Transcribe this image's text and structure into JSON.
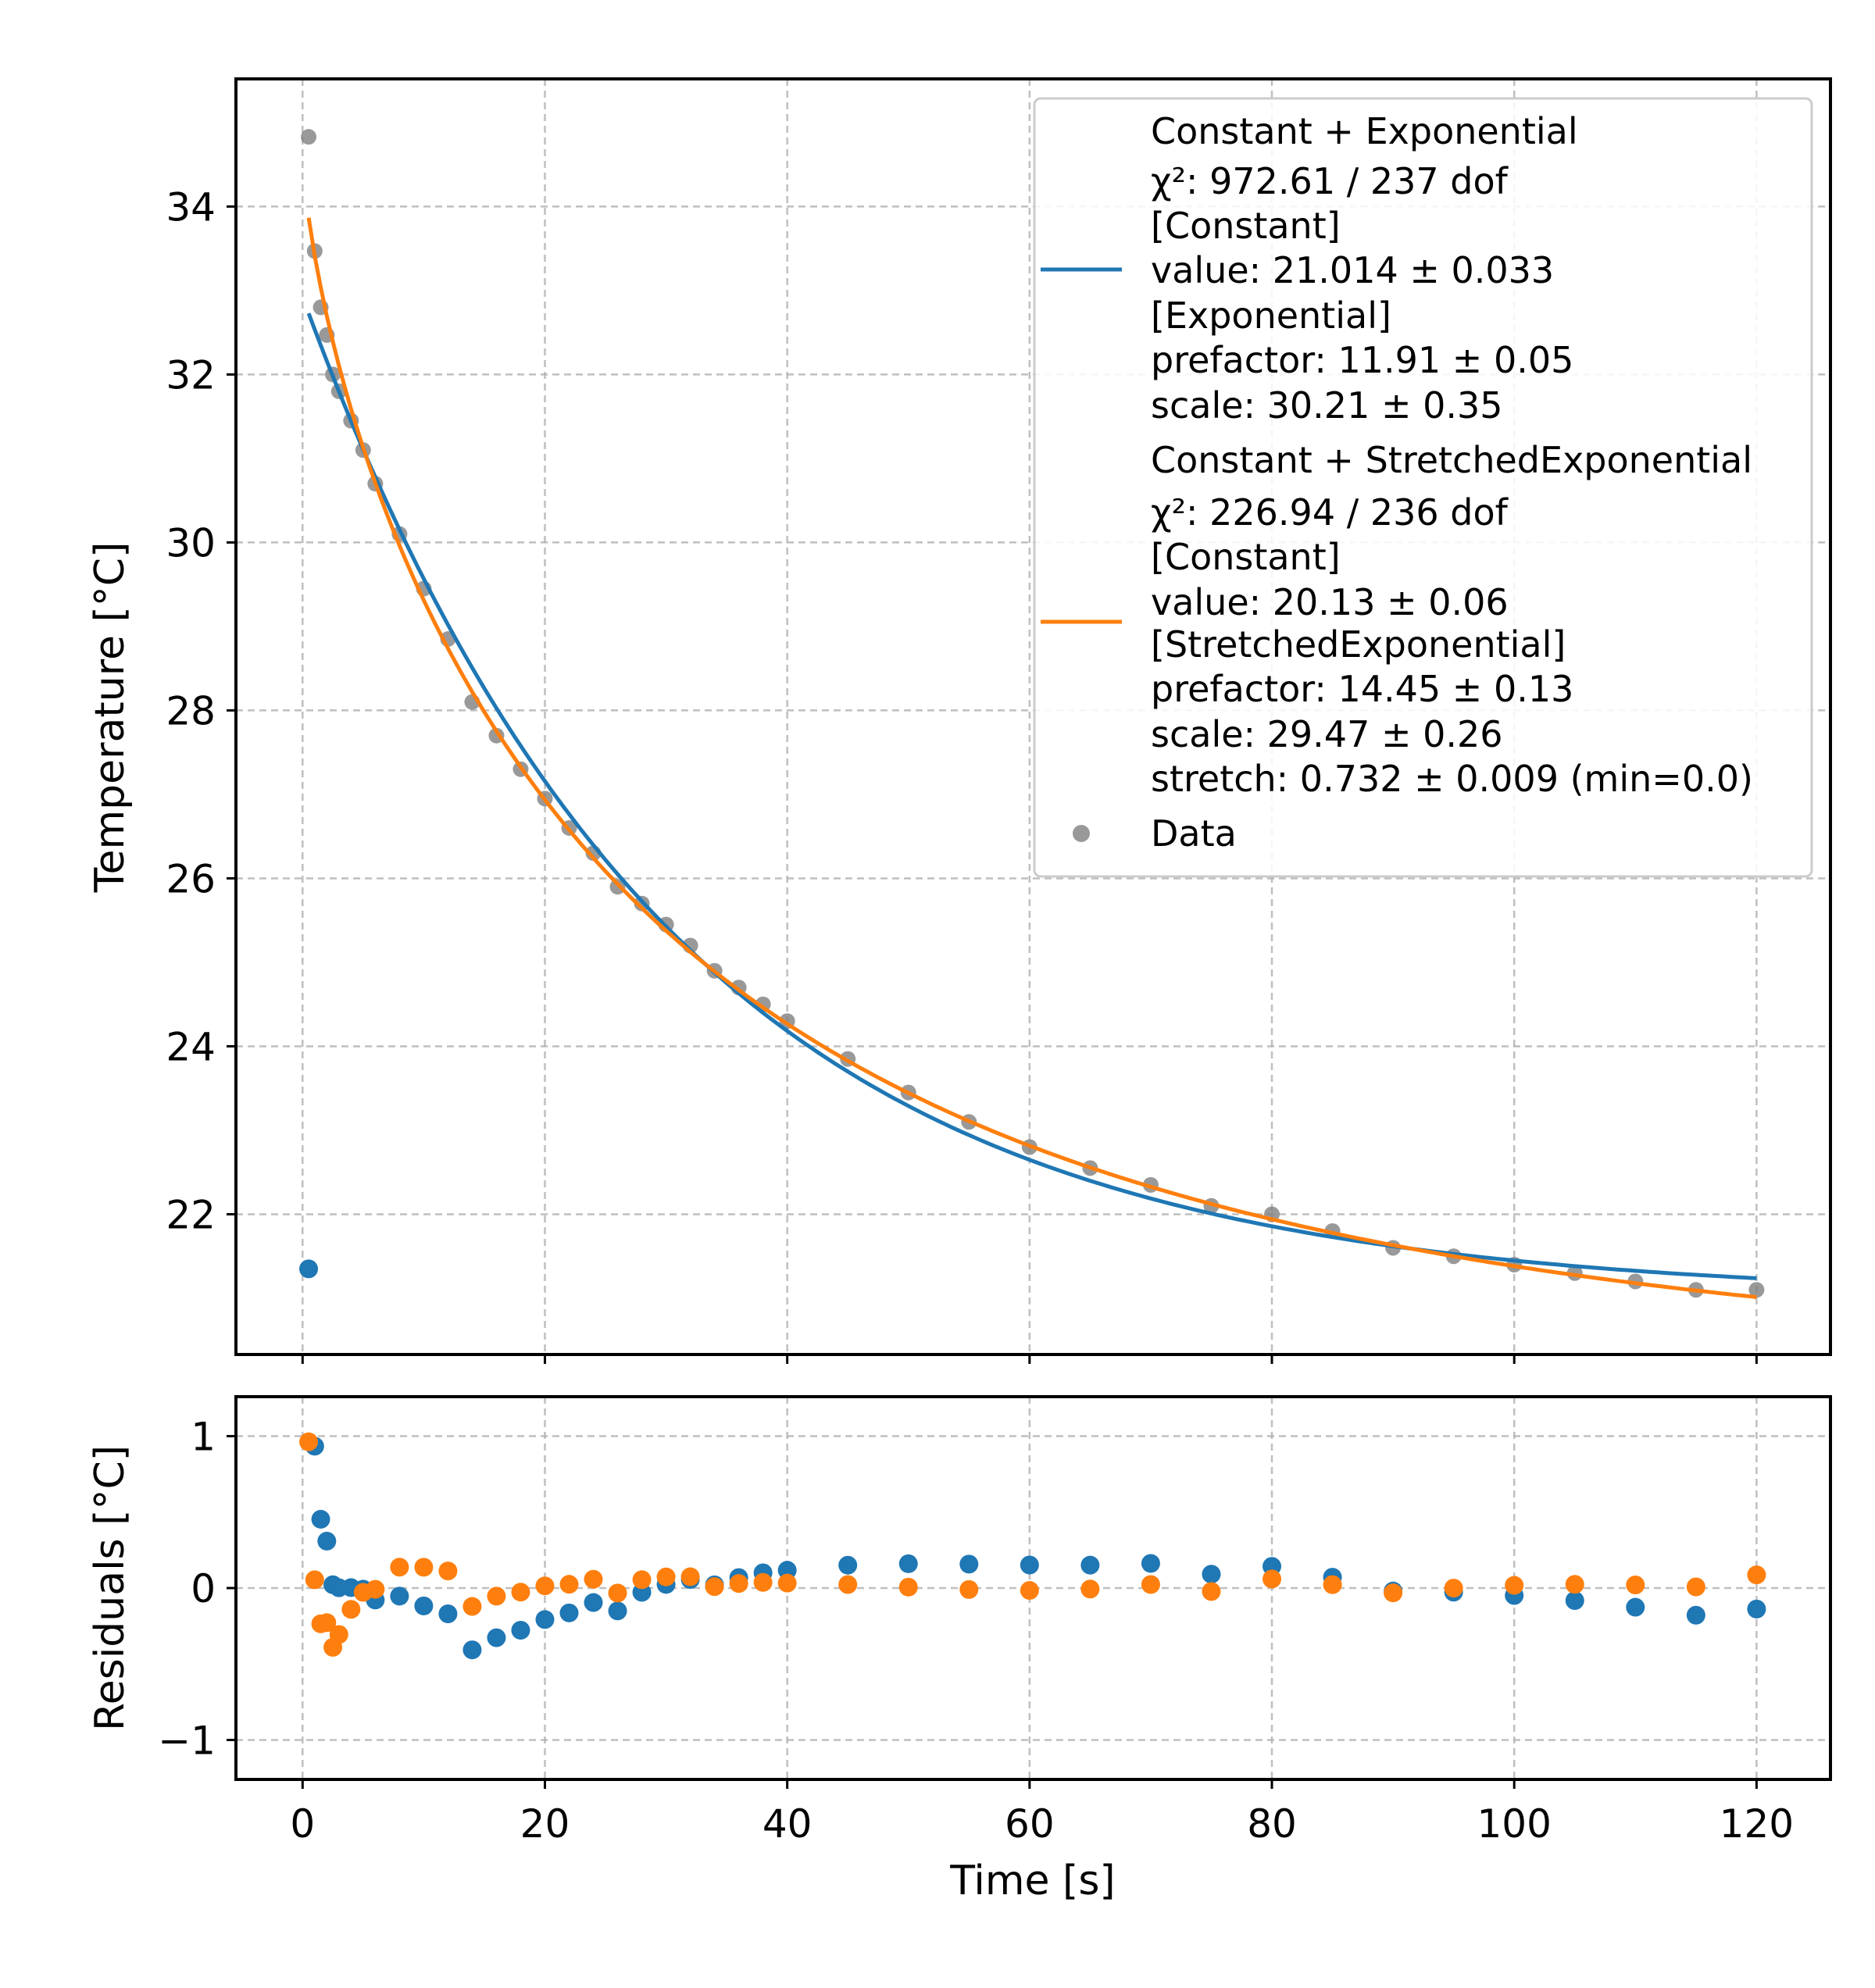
{
  "chart_data": [
    {
      "type": "scatter",
      "panel": "main",
      "xlabel": "",
      "ylabel": "Temperature [°C]",
      "xlim": [
        -5.5,
        126.1
      ],
      "ylim": [
        20.33,
        35.52
      ],
      "xticks": [
        0,
        20,
        40,
        60,
        80,
        100,
        120
      ],
      "yticks": [
        22,
        24,
        26,
        28,
        30,
        32,
        34
      ],
      "ytick_labels": [
        "22",
        "24",
        "26",
        "28",
        "30",
        "32",
        "34"
      ],
      "grid": true,
      "legend_placement": "top-right",
      "colors": {
        "exp": "#1f77b4",
        "stretched": "#ff7f0e",
        "data": "#808080"
      },
      "data": {
        "name": "Data",
        "x": [
          0.5,
          1,
          1.5,
          2,
          2.5,
          3,
          4,
          5,
          6,
          8,
          10,
          12,
          14,
          16,
          18,
          20,
          22,
          24,
          26,
          28,
          30,
          32,
          34,
          36,
          38,
          40,
          45,
          50,
          55,
          60,
          65,
          70,
          75,
          80,
          85,
          90,
          95,
          100,
          105,
          110,
          115,
          120
        ],
        "y": [
          34.83,
          33.47,
          32.8,
          32.47,
          32.0,
          31.8,
          31.45,
          31.1,
          30.7,
          30.1,
          29.45,
          28.85,
          28.1,
          27.7,
          27.3,
          26.95,
          26.6,
          26.3,
          25.9,
          25.7,
          25.45,
          25.2,
          24.9,
          24.7,
          24.5,
          24.3,
          23.85,
          23.45,
          23.1,
          22.8,
          22.55,
          22.35,
          22.1,
          22.0,
          21.8,
          21.6,
          21.5,
          21.4,
          21.3,
          21.2,
          21.1,
          21.1
        ]
      },
      "fits": [
        {
          "model": "exponential",
          "constant": 21.014,
          "prefactor": 11.91,
          "scale": 30.21,
          "stretch": 1.0,
          "x_range": [
            0.5,
            120
          ]
        },
        {
          "model": "stretched",
          "constant": 20.13,
          "prefactor": 14.45,
          "scale": 29.47,
          "stretch": 0.732,
          "x_range": [
            0.5,
            120
          ]
        }
      ],
      "legend": {
        "exp_lines": [
          "Constant + Exponential",
          "χ²: 972.61 / 237 dof",
          "[Constant]",
          "value: 21.014 ± 0.033",
          "[Exponential]",
          "prefactor: 11.91 ± 0.05",
          "scale: 30.21 ± 0.35"
        ],
        "stretched_lines": [
          "Constant + StretchedExponential",
          "χ²: 226.94 / 236 dof",
          "[Constant]",
          "value: 20.13 ± 0.06",
          "[StretchedExponential]",
          "prefactor: 14.45 ± 0.13",
          "scale: 29.47 ± 0.26",
          "stretch: 0.732 ± 0.009 (min=0.0)"
        ],
        "data_label": "Data"
      }
    },
    {
      "type": "scatter",
      "panel": "residuals",
      "xlabel": "Time [s]",
      "ylabel": "Residuals [°C]",
      "xlim": [
        -5.5,
        126.1
      ],
      "ylim": [
        -1.26,
        1.26
      ],
      "xticks": [
        0,
        20,
        40,
        60,
        80,
        100,
        120
      ],
      "xtick_labels": [
        "0",
        "20",
        "40",
        "60",
        "80",
        "100",
        "120"
      ],
      "yticks": [
        -1,
        0,
        1
      ],
      "ytick_labels": [
        "−1",
        "0",
        "1"
      ],
      "grid": true,
      "series": [
        {
          "fit": "exponential",
          "color": "#1f77b4"
        },
        {
          "fit": "stretched",
          "color": "#ff7f0e"
        }
      ]
    }
  ]
}
